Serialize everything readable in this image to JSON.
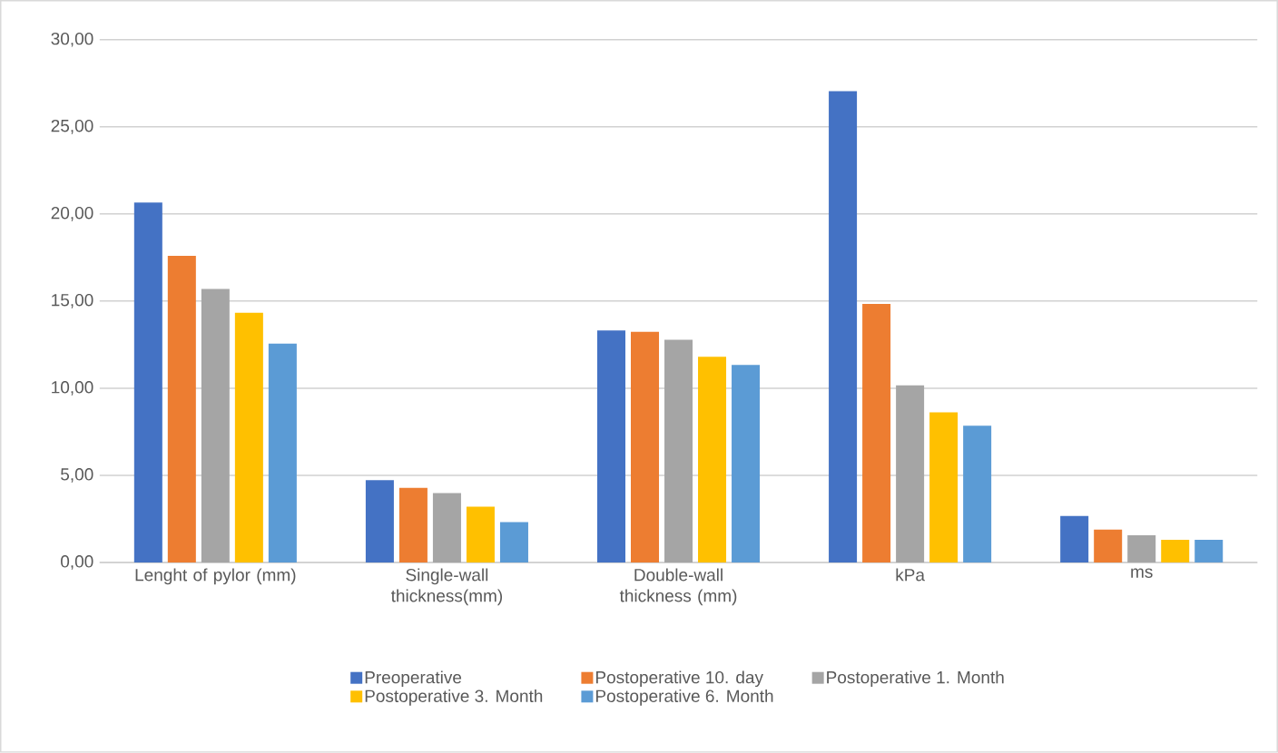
{
  "chart_data": {
    "type": "bar",
    "categories": [
      "Lenght of pylor (mm)",
      "Single-wall thickness(mm)",
      "Double-wall thickness (mm)",
      "kPa",
      "ms"
    ],
    "series": [
      {
        "name": "Preoperative",
        "color": "#4472c4",
        "values": [
          20.65,
          4.72,
          13.31,
          27.04,
          2.67
        ]
      },
      {
        "name": "Postoperative 10. day",
        "color": "#ed7d31",
        "values": [
          17.6,
          4.28,
          13.24,
          14.83,
          1.89
        ]
      },
      {
        "name": "Postoperative 1. Month",
        "color": "#a5a5a5",
        "values": [
          15.7,
          3.98,
          12.78,
          10.17,
          1.56
        ]
      },
      {
        "name": "Postoperative 3. Month",
        "color": "#ffc000",
        "values": [
          14.33,
          3.2,
          11.81,
          8.61,
          1.3
        ]
      },
      {
        "name": "Postoperative 6. Month",
        "color": "#5b9bd5",
        "values": [
          12.56,
          2.31,
          11.33,
          7.85,
          1.3
        ]
      }
    ],
    "ylim": [
      0,
      30
    ],
    "yticks": [
      {
        "value": 0,
        "label": "0,00"
      },
      {
        "value": 5,
        "label": "5,00"
      },
      {
        "value": 10,
        "label": "10,00"
      },
      {
        "value": 15,
        "label": "15,00"
      },
      {
        "value": 20,
        "label": "20,00"
      },
      {
        "value": 25,
        "label": "25,00"
      },
      {
        "value": 30,
        "label": "30,00"
      }
    ],
    "grid": "y",
    "legend": "bottom"
  }
}
